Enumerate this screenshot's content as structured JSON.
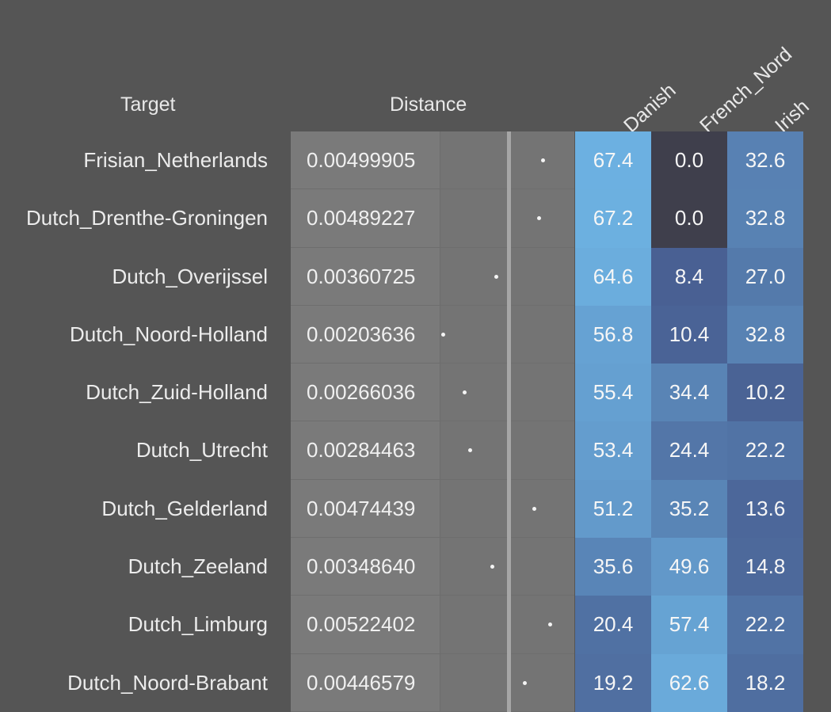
{
  "headers": {
    "target": "Target",
    "distance": "Distance"
  },
  "chart_data": {
    "type": "heatmap",
    "columns": [
      "Danish",
      "French_Nord",
      "Irish"
    ],
    "rows": [
      {
        "target": "Frisian_Netherlands",
        "distance": "0.00499905",
        "values": [
          "67.4",
          "0.0",
          "32.6"
        ]
      },
      {
        "target": "Dutch_Drenthe-Groningen",
        "distance": "0.00489227",
        "values": [
          "67.2",
          "0.0",
          "32.8"
        ]
      },
      {
        "target": "Dutch_Overijssel",
        "distance": "0.00360725",
        "values": [
          "64.6",
          "8.4",
          "27.0"
        ]
      },
      {
        "target": "Dutch_Noord-Holland",
        "distance": "0.00203636",
        "values": [
          "56.8",
          "10.4",
          "32.8"
        ]
      },
      {
        "target": "Dutch_Zuid-Holland",
        "distance": "0.00266036",
        "values": [
          "55.4",
          "34.4",
          "10.2"
        ]
      },
      {
        "target": "Dutch_Utrecht",
        "distance": "0.00284463",
        "values": [
          "53.4",
          "24.4",
          "22.2"
        ]
      },
      {
        "target": "Dutch_Gelderland",
        "distance": "0.00474439",
        "values": [
          "51.2",
          "35.2",
          "13.6"
        ]
      },
      {
        "target": "Dutch_Zeeland",
        "distance": "0.00348640",
        "values": [
          "35.6",
          "49.6",
          "14.8"
        ]
      },
      {
        "target": "Dutch_Limburg",
        "distance": "0.00522402",
        "values": [
          "20.4",
          "57.4",
          "22.2"
        ]
      },
      {
        "target": "Dutch_Noord-Brabant",
        "distance": "0.00446579",
        "values": [
          "19.2",
          "62.6",
          "18.2"
        ]
      }
    ]
  },
  "colors": {
    "background": "#555555",
    "zero": "#3f3f4c",
    "low": "#445588",
    "high": "#6eb4e4"
  }
}
